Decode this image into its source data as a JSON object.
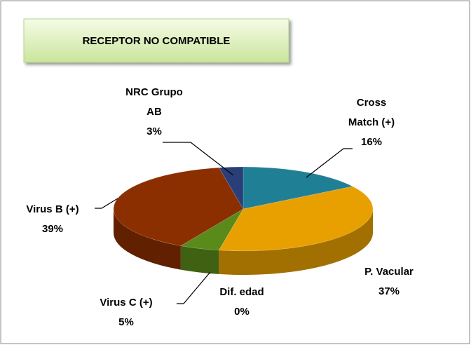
{
  "chart_data": {
    "type": "pie",
    "title": "RECEPTOR NO COMPATIBLE",
    "categories": [
      "Cross Match (+)",
      "P. Vacular",
      "Dif. edad",
      "Virus C (+)",
      "Virus B (+)",
      "NRC Grupo AB"
    ],
    "values": [
      16,
      37,
      0,
      5,
      39,
      3
    ],
    "value_labels": [
      "16%",
      "37%",
      "0%",
      "5%",
      "39%",
      "3%"
    ],
    "colors": [
      "#1f7f95",
      "#e8a000",
      "#8fb33a",
      "#5a8a1a",
      "#8b2f00",
      "#2a3f7a"
    ]
  }
}
